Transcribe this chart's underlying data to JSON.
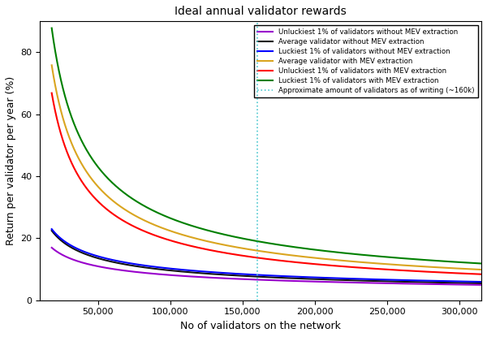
{
  "title": "Ideal annual validator rewards",
  "xlabel": "No of validators on the network",
  "ylabel": "Return per validator per year (%)",
  "x_min": 10000,
  "x_max": 315000,
  "y_min": 0,
  "y_max": 90,
  "vline_x": 160000,
  "vline_label": "Approximate amount of validators as of writing (~160k)",
  "legend_labels": [
    "Luckiest 1% of validators with MEV extraction",
    "Unluckiest 1% of validators with MEV extraction",
    "Luckiest 1% of validators without MEV extraction",
    "Unluckiest 1% of validators without MEV extraction",
    "Average validator without MEV extraction",
    "Average validator with MEV extraction"
  ],
  "curve_data": [
    {
      "color": "green",
      "A": 8800,
      "exponent": 0.5,
      "label_idx": 0
    },
    {
      "color": "goldenrod",
      "A": 7200,
      "exponent": 0.5,
      "label_idx": 5
    },
    {
      "color": "red",
      "A": 6200,
      "exponent": 0.5,
      "label_idx": 1
    },
    {
      "color": "blue",
      "A": 2300,
      "exponent": 0.5,
      "label_idx": 2
    },
    {
      "color": "#1a1aff",
      "A": 2050,
      "exponent": 0.5,
      "label_idx": 4
    },
    {
      "color": "#800080",
      "A": 1700,
      "exponent": 0.5,
      "label_idx": 3
    }
  ],
  "xticks": [
    50000,
    100000,
    150000,
    200000,
    250000,
    300000
  ],
  "yticks": [
    0,
    20,
    40,
    60,
    80
  ],
  "vline_color": "#4dc8d0",
  "background": "#ffffff"
}
